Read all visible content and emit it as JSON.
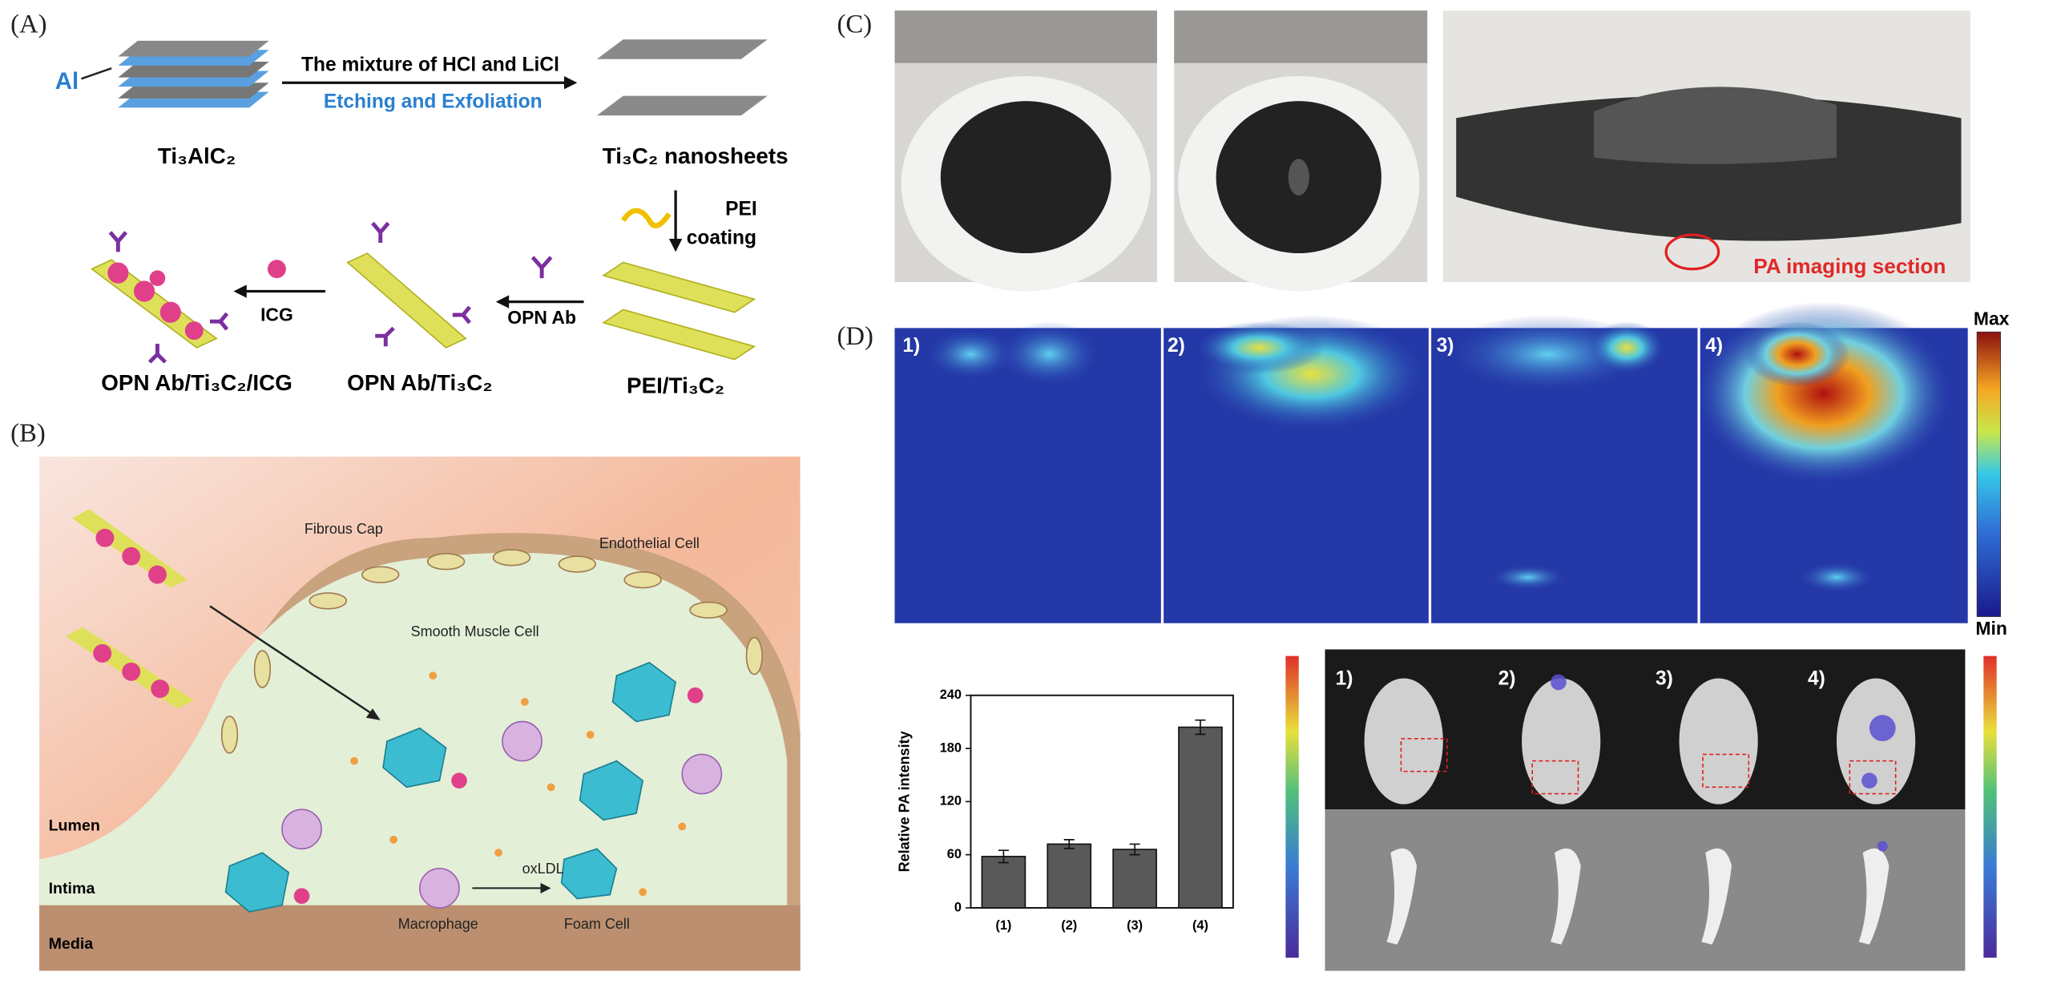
{
  "panel_a": {
    "label": "(A)",
    "al": "Al",
    "step1_top": "The mixture of HCl and LiCl",
    "step1_bottom": "Etching and Exfoliation",
    "ti3alc2": "Ti₃AlC₂",
    "nanosheets": "Ti₃C₂ nanosheets",
    "pei": "PEI",
    "coating": "coating",
    "pei_ti3c2": "PEI/Ti₃C₂",
    "opn_ab": "OPN Ab",
    "opn_ab_ti3c2": "OPN Ab/Ti₃C₂",
    "icg": "ICG",
    "opn_ab_ti3c2_icg": "OPN Ab/Ti₃C₂/ICG"
  },
  "panel_b": {
    "label": "(B)",
    "fibrous_cap": "Fibrous Cap",
    "endothelial": "Endothelial Cell",
    "smooth_muscle": "Smooth Muscle Cell",
    "lumen": "Lumen",
    "intima": "Intima",
    "media": "Media",
    "macrophage": "Macrophage",
    "oxldl": "oxLDL",
    "foam_cell": "Foam Cell"
  },
  "panel_c": {
    "label": "(C)",
    "section": "PA imaging section"
  },
  "panel_d": {
    "label": "(D)",
    "heat_labels": [
      "1)",
      "2)",
      "3)",
      "4)"
    ],
    "max": "Max",
    "min": "Min",
    "fluor_labels": [
      "1)",
      "2)",
      "3)",
      "4)"
    ],
    "chart": {
      "type": "bar",
      "ylabel": "Relative PA intensity",
      "categories": [
        "(1)",
        "(2)",
        "(3)",
        "(4)"
      ],
      "values": [
        58,
        72,
        66,
        204
      ],
      "errors": [
        7,
        5,
        6,
        8
      ],
      "color": "#595959",
      "ylim": [
        0,
        240
      ],
      "yticks": [
        0,
        60,
        120,
        180,
        240
      ]
    }
  }
}
